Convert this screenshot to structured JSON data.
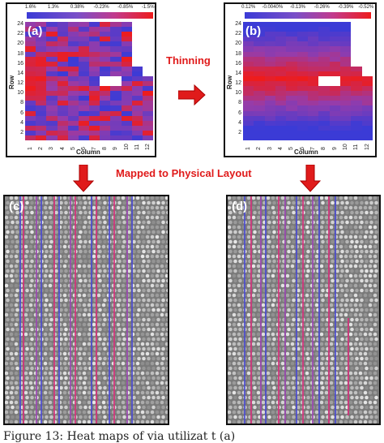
{
  "panels": {
    "a": {
      "letter": "(a)",
      "colorbar_labels": [
        "1.6%",
        "1.3%",
        "0.38%",
        "-0.23%",
        "-0.85%",
        "-1.5%"
      ],
      "xlabel": "Column",
      "ylabel": "Row",
      "xticks": [
        "1",
        "2",
        "3",
        "4",
        "5",
        "6",
        "7",
        "8",
        "9",
        "10",
        "11",
        "12"
      ],
      "yticks": [
        "24",
        "22",
        "20",
        "18",
        "16",
        "14",
        "12",
        "10",
        "8",
        "6",
        "4",
        "2"
      ]
    },
    "b": {
      "letter": "(b)",
      "colorbar_labels": [
        "0.12%",
        "-0.0040%",
        "-0.13%",
        "-0.26%",
        "-0.39%",
        "-0.52%"
      ],
      "xlabel": "Column",
      "ylabel": "Row",
      "xticks": [
        "1",
        "2",
        "3",
        "4",
        "5",
        "6",
        "7",
        "8",
        "9",
        "10",
        "11",
        "12"
      ],
      "yticks": [
        "24",
        "22",
        "20",
        "18",
        "16",
        "14",
        "12",
        "10",
        "8",
        "6",
        "4",
        "2"
      ]
    },
    "c": {
      "letter": "(c)"
    },
    "d": {
      "letter": "(d)"
    }
  },
  "annotations": {
    "thinning": "Thinning",
    "mapped": "Mapped to Physical Layout"
  },
  "colors": {
    "arrow_red": "#e01b1b",
    "heat_blue": "#3b3bd6",
    "heat_red": "#ee1c1c"
  },
  "caption": "Figure 13:   Heat maps of via    utilizat     t (a)"
}
